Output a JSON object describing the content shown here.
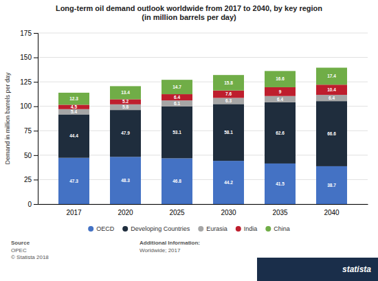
{
  "chart_data": {
    "type": "bar",
    "stacked": true,
    "title": "Long-term oil demand outlook worldwide from 2017 to 2040, by key region\n(in million barrels per day)",
    "categories": [
      "2017",
      "2020",
      "2025",
      "2030",
      "2035",
      "2040"
    ],
    "series": [
      {
        "name": "OECD",
        "color": "#4472c4",
        "values": [
          47.3,
          48.3,
          46.8,
          44.2,
          41.5,
          38.7
        ]
      },
      {
        "name": "Developing Countries",
        "color": "#1f2d3d",
        "values": [
          44.4,
          47.9,
          53.1,
          58.1,
          62.6,
          66.6
        ]
      },
      {
        "name": "Eurasia",
        "color": "#a6a6a6",
        "values": [
          5.4,
          5.8,
          6.1,
          6.3,
          6.4,
          6.4
        ]
      },
      {
        "name": "India",
        "color": "#be1e2d",
        "values": [
          4.5,
          5.2,
          6.4,
          7.6,
          9.0,
          10.4
        ]
      },
      {
        "name": "China",
        "color": "#70ad47",
        "values": [
          12.3,
          13.4,
          14.7,
          15.8,
          16.6,
          17.4
        ]
      }
    ],
    "ylabel": "Demand in million barrels per day",
    "ylim": [
      0,
      175
    ],
    "yticks": [
      0,
      25,
      50,
      75,
      100,
      125,
      150,
      175
    ],
    "grid": true,
    "data_labels": true,
    "legend": "bottom",
    "annotations": [
      "Source",
      "OPEC",
      "© Statista 2018",
      "Additional Information:",
      "Worldwide; 2017",
      "statista"
    ]
  }
}
